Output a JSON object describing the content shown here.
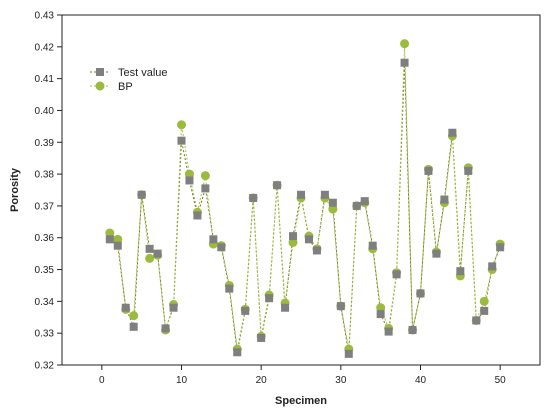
{
  "chart_data": {
    "type": "line",
    "xlabel": "Specimen",
    "ylabel": "Porosity",
    "xlim": [
      -5,
      55
    ],
    "ylim": [
      0.32,
      0.43
    ],
    "x_ticks": [
      0,
      10,
      20,
      30,
      40,
      50
    ],
    "y_ticks": [
      0.32,
      0.33,
      0.34,
      0.35,
      0.36,
      0.37,
      0.38,
      0.39,
      0.4,
      0.41,
      0.42,
      0.43
    ],
    "grid": false,
    "legend_position": "top-left",
    "x": [
      1,
      2,
      3,
      4,
      5,
      6,
      7,
      8,
      9,
      10,
      11,
      12,
      13,
      14,
      15,
      16,
      17,
      18,
      19,
      20,
      21,
      22,
      23,
      24,
      25,
      26,
      27,
      28,
      29,
      30,
      31,
      32,
      33,
      34,
      35,
      36,
      37,
      38,
      39,
      40,
      41,
      42,
      43,
      44,
      45,
      46,
      47,
      48,
      49,
      50
    ],
    "series": [
      {
        "name": "Test value",
        "marker": "square",
        "color": "#7f7f7f",
        "values": [
          0.3595,
          0.3575,
          0.338,
          0.332,
          0.3735,
          0.3565,
          0.355,
          0.3315,
          0.338,
          0.3905,
          0.378,
          0.367,
          0.3755,
          0.3595,
          0.357,
          0.344,
          0.324,
          0.337,
          0.3725,
          0.3285,
          0.341,
          0.3765,
          0.338,
          0.3605,
          0.3735,
          0.3595,
          0.356,
          0.3735,
          0.371,
          0.3385,
          0.3235,
          0.37,
          0.3715,
          0.3575,
          0.336,
          0.3305,
          0.3485,
          0.415,
          0.331,
          0.3425,
          0.381,
          0.355,
          0.372,
          0.393,
          0.3495,
          0.381,
          0.334,
          0.337,
          0.351,
          0.357
        ]
      },
      {
        "name": "BP",
        "marker": "circle",
        "color": "#9bbb3c",
        "values": [
          0.3615,
          0.3595,
          0.3375,
          0.3355,
          0.3735,
          0.3535,
          0.3545,
          0.331,
          0.339,
          0.3955,
          0.38,
          0.368,
          0.3795,
          0.358,
          0.3575,
          0.345,
          0.325,
          0.3375,
          0.3725,
          0.329,
          0.342,
          0.3765,
          0.3395,
          0.3585,
          0.3725,
          0.3605,
          0.3565,
          0.3725,
          0.369,
          0.3385,
          0.325,
          0.37,
          0.371,
          0.3565,
          0.338,
          0.3315,
          0.349,
          0.421,
          0.331,
          0.3425,
          0.3815,
          0.3555,
          0.371,
          0.392,
          0.348,
          0.382,
          0.334,
          0.34,
          0.35,
          0.358
        ]
      }
    ]
  }
}
